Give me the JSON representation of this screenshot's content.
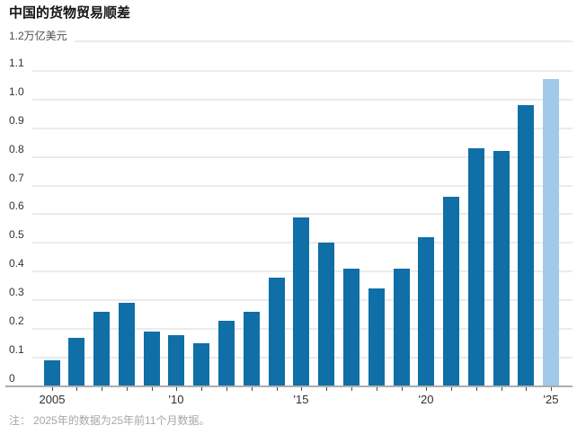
{
  "header": {
    "title": "中国的货物贸易顺差"
  },
  "chart_data": {
    "type": "bar",
    "title": "中国的货物贸易顺差",
    "unit_label": "1.2万亿美元",
    "ylabel": "万亿美元",
    "ylim": [
      0,
      1.2
    ],
    "ytick_step": 0.1,
    "ytick_labels": [
      "0",
      "0.1",
      "0.2",
      "0.3",
      "0.4",
      "0.5",
      "0.6",
      "0.7",
      "0.8",
      "0.9",
      "1.0",
      "1.1"
    ],
    "top_axis_value": "1.2",
    "categories": [
      2005,
      2006,
      2007,
      2008,
      2009,
      2010,
      2011,
      2012,
      2013,
      2014,
      2015,
      2016,
      2017,
      2018,
      2019,
      2020,
      2021,
      2022,
      2023,
      2024,
      2025
    ],
    "values": [
      0.09,
      0.17,
      0.26,
      0.29,
      0.19,
      0.18,
      0.15,
      0.23,
      0.26,
      0.38,
      0.59,
      0.5,
      0.41,
      0.34,
      0.41,
      0.52,
      0.66,
      0.83,
      0.82,
      0.98,
      1.07
    ],
    "xtick_labels": [
      {
        "index": 0,
        "label": "2005"
      },
      {
        "index": 5,
        "label": "'10"
      },
      {
        "index": 10,
        "label": "'15"
      },
      {
        "index": 15,
        "label": "'20"
      },
      {
        "index": 20,
        "label": "'25"
      }
    ],
    "highlight_index": 20,
    "grid": true,
    "legend": null,
    "colors": {
      "bar": "#0f6fa6",
      "bar_highlight": "#a1c9e9",
      "grid": "#ebebeb",
      "axis": "#adadad",
      "tick": "#4d4d4d",
      "axis_label": "#333333",
      "title": "#141414",
      "note": "#a7a7a7"
    }
  },
  "note": {
    "label": "注：",
    "text": "2025年的数据为25年前11个月数据。"
  }
}
